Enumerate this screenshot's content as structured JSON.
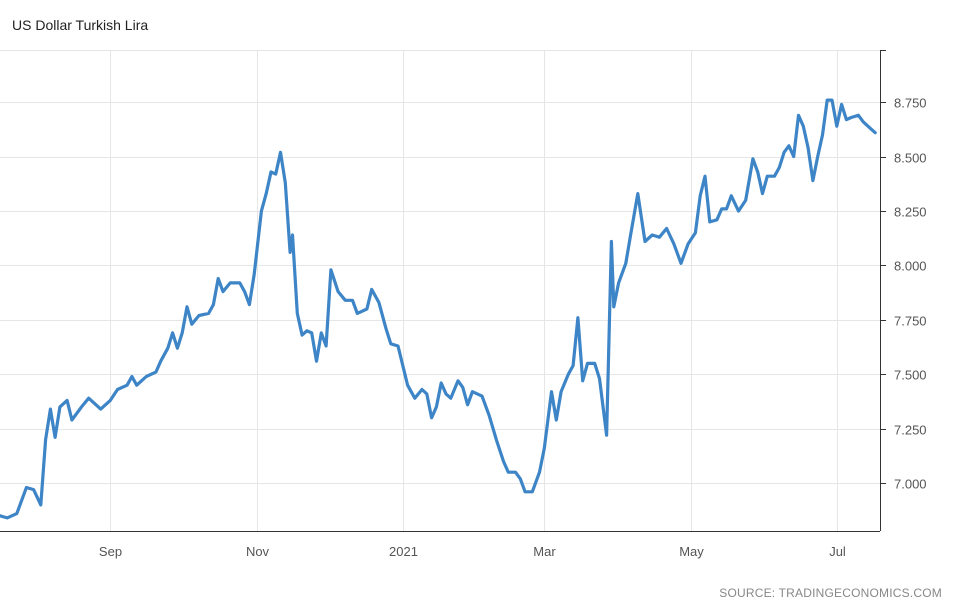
{
  "header": {
    "title": "US Dollar Turkish Lira"
  },
  "footer": {
    "source": "SOURCE: TRADINGECONOMICS.COM"
  },
  "colors": {
    "line": "#3d85c6",
    "grid": "#e6e6e6",
    "axis": "#333333"
  },
  "chart_data": {
    "type": "line",
    "title": "US Dollar Turkish Lira",
    "xlabel": "",
    "ylabel": "",
    "x_range": [
      "2020-07-17",
      "2021-07-19"
    ],
    "ylim": [
      6.78,
      8.99
    ],
    "yticks": [
      "7.000",
      "7.250",
      "7.500",
      "7.750",
      "8.000",
      "8.250",
      "8.500",
      "8.750"
    ],
    "xticks": [
      {
        "label": "Sep",
        "date": "2020-09-01"
      },
      {
        "label": "Nov",
        "date": "2020-11-01"
      },
      {
        "label": "2021",
        "date": "2021-01-01"
      },
      {
        "label": "Mar",
        "date": "2021-03-01"
      },
      {
        "label": "May",
        "date": "2021-05-01"
      },
      {
        "label": "Jul",
        "date": "2021-07-01"
      }
    ],
    "grid": true,
    "series": [
      {
        "values": [
          [
            "2020-07-17",
            6.85
          ],
          [
            "2020-07-20",
            6.84
          ],
          [
            "2020-07-24",
            6.86
          ],
          [
            "2020-07-28",
            6.98
          ],
          [
            "2020-07-31",
            6.97
          ],
          [
            "2020-08-03",
            6.9
          ],
          [
            "2020-08-05",
            7.2
          ],
          [
            "2020-08-07",
            7.34
          ],
          [
            "2020-08-09",
            7.21
          ],
          [
            "2020-08-11",
            7.35
          ],
          [
            "2020-08-14",
            7.38
          ],
          [
            "2020-08-16",
            7.29
          ],
          [
            "2020-08-20",
            7.35
          ],
          [
            "2020-08-23",
            7.39
          ],
          [
            "2020-08-28",
            7.34
          ],
          [
            "2020-09-01",
            7.38
          ],
          [
            "2020-09-04",
            7.43
          ],
          [
            "2020-09-08",
            7.45
          ],
          [
            "2020-09-10",
            7.49
          ],
          [
            "2020-09-12",
            7.45
          ],
          [
            "2020-09-16",
            7.49
          ],
          [
            "2020-09-20",
            7.51
          ],
          [
            "2020-09-22",
            7.56
          ],
          [
            "2020-09-25",
            7.62
          ],
          [
            "2020-09-27",
            7.69
          ],
          [
            "2020-09-29",
            7.62
          ],
          [
            "2020-10-01",
            7.69
          ],
          [
            "2020-10-03",
            7.81
          ],
          [
            "2020-10-05",
            7.73
          ],
          [
            "2020-10-08",
            7.77
          ],
          [
            "2020-10-12",
            7.78
          ],
          [
            "2020-10-14",
            7.82
          ],
          [
            "2020-10-16",
            7.94
          ],
          [
            "2020-10-18",
            7.88
          ],
          [
            "2020-10-21",
            7.92
          ],
          [
            "2020-10-25",
            7.92
          ],
          [
            "2020-10-27",
            7.88
          ],
          [
            "2020-10-29",
            7.82
          ],
          [
            "2020-10-31",
            7.96
          ],
          [
            "2020-11-03",
            8.25
          ],
          [
            "2020-11-05",
            8.33
          ],
          [
            "2020-11-07",
            8.43
          ],
          [
            "2020-11-09",
            8.42
          ],
          [
            "2020-11-11",
            8.52
          ],
          [
            "2020-11-13",
            8.38
          ],
          [
            "2020-11-15",
            8.06
          ],
          [
            "2020-11-16",
            8.14
          ],
          [
            "2020-11-18",
            7.78
          ],
          [
            "2020-11-20",
            7.68
          ],
          [
            "2020-11-22",
            7.7
          ],
          [
            "2020-11-24",
            7.69
          ],
          [
            "2020-11-26",
            7.56
          ],
          [
            "2020-11-28",
            7.69
          ],
          [
            "2020-11-30",
            7.63
          ],
          [
            "2020-12-02",
            7.98
          ],
          [
            "2020-12-05",
            7.88
          ],
          [
            "2020-12-08",
            7.84
          ],
          [
            "2020-12-11",
            7.84
          ],
          [
            "2020-12-13",
            7.78
          ],
          [
            "2020-12-17",
            7.8
          ],
          [
            "2020-12-19",
            7.89
          ],
          [
            "2020-12-22",
            7.83
          ],
          [
            "2020-12-25",
            7.71
          ],
          [
            "2020-12-27",
            7.64
          ],
          [
            "2020-12-30",
            7.63
          ],
          [
            "2021-01-03",
            7.45
          ],
          [
            "2021-01-06",
            7.39
          ],
          [
            "2021-01-09",
            7.43
          ],
          [
            "2021-01-11",
            7.41
          ],
          [
            "2021-01-13",
            7.3
          ],
          [
            "2021-01-15",
            7.35
          ],
          [
            "2021-01-17",
            7.46
          ],
          [
            "2021-01-19",
            7.41
          ],
          [
            "2021-01-21",
            7.39
          ],
          [
            "2021-01-24",
            7.47
          ],
          [
            "2021-01-26",
            7.44
          ],
          [
            "2021-01-28",
            7.36
          ],
          [
            "2021-01-30",
            7.42
          ],
          [
            "2021-02-03",
            7.4
          ],
          [
            "2021-02-06",
            7.31
          ],
          [
            "2021-02-09",
            7.2
          ],
          [
            "2021-02-12",
            7.1
          ],
          [
            "2021-02-14",
            7.05
          ],
          [
            "2021-02-17",
            7.05
          ],
          [
            "2021-02-19",
            7.02
          ],
          [
            "2021-02-21",
            6.96
          ],
          [
            "2021-02-24",
            6.96
          ],
          [
            "2021-02-27",
            7.05
          ],
          [
            "2021-03-01",
            7.16
          ],
          [
            "2021-03-04",
            7.42
          ],
          [
            "2021-03-06",
            7.29
          ],
          [
            "2021-03-08",
            7.42
          ],
          [
            "2021-03-11",
            7.5
          ],
          [
            "2021-03-13",
            7.54
          ],
          [
            "2021-03-15",
            7.76
          ],
          [
            "2021-03-17",
            7.47
          ],
          [
            "2021-03-19",
            7.55
          ],
          [
            "2021-03-22",
            7.55
          ],
          [
            "2021-03-24",
            7.48
          ],
          [
            "2021-03-27",
            7.22
          ],
          [
            "2021-03-29",
            8.11
          ],
          [
            "2021-03-30",
            7.81
          ],
          [
            "2021-04-01",
            7.92
          ],
          [
            "2021-04-04",
            8.01
          ],
          [
            "2021-04-06",
            8.14
          ],
          [
            "2021-04-09",
            8.33
          ],
          [
            "2021-04-12",
            8.11
          ],
          [
            "2021-04-15",
            8.14
          ],
          [
            "2021-04-18",
            8.13
          ],
          [
            "2021-04-21",
            8.17
          ],
          [
            "2021-04-24",
            8.1
          ],
          [
            "2021-04-27",
            8.01
          ],
          [
            "2021-04-30",
            8.1
          ],
          [
            "2021-05-03",
            8.15
          ],
          [
            "2021-05-05",
            8.32
          ],
          [
            "2021-05-07",
            8.41
          ],
          [
            "2021-05-09",
            8.2
          ],
          [
            "2021-05-12",
            8.21
          ],
          [
            "2021-05-14",
            8.26
          ],
          [
            "2021-05-16",
            8.26
          ],
          [
            "2021-05-18",
            8.32
          ],
          [
            "2021-05-21",
            8.25
          ],
          [
            "2021-05-24",
            8.3
          ],
          [
            "2021-05-27",
            8.49
          ],
          [
            "2021-05-29",
            8.43
          ],
          [
            "2021-05-31",
            8.33
          ],
          [
            "2021-06-02",
            8.41
          ],
          [
            "2021-06-05",
            8.41
          ],
          [
            "2021-06-07",
            8.45
          ],
          [
            "2021-06-09",
            8.52
          ],
          [
            "2021-06-11",
            8.55
          ],
          [
            "2021-06-13",
            8.5
          ],
          [
            "2021-06-15",
            8.69
          ],
          [
            "2021-06-17",
            8.64
          ],
          [
            "2021-06-19",
            8.54
          ],
          [
            "2021-06-21",
            8.39
          ],
          [
            "2021-06-23",
            8.5
          ],
          [
            "2021-06-25",
            8.6
          ],
          [
            "2021-06-27",
            8.76
          ],
          [
            "2021-06-29",
            8.76
          ],
          [
            "2021-07-01",
            8.64
          ],
          [
            "2021-07-03",
            8.74
          ],
          [
            "2021-07-05",
            8.67
          ],
          [
            "2021-07-07",
            8.68
          ],
          [
            "2021-07-10",
            8.69
          ],
          [
            "2021-07-12",
            8.66
          ],
          [
            "2021-07-15",
            8.63
          ],
          [
            "2021-07-17",
            8.61
          ]
        ]
      }
    ]
  }
}
